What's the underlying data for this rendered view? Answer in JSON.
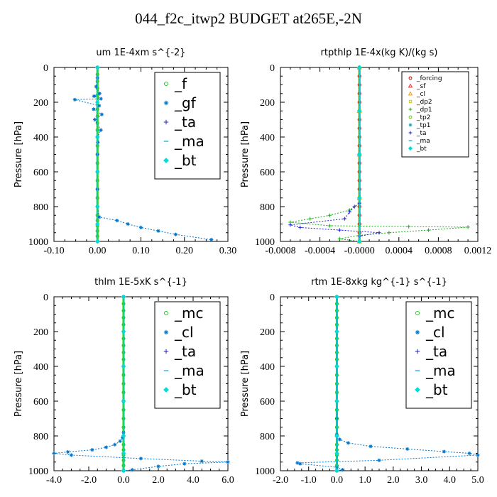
{
  "figure": {
    "title": "044_f2c_itwp2  BUDGET at265E,-2N"
  },
  "chart_data": [
    {
      "type": "line",
      "title": "um   1E-4xm s^{-2}",
      "ylabel": "Pressure [hPa]",
      "xlim": [
        -0.1,
        0.3
      ],
      "ylim": [
        1000,
        0
      ],
      "xticks": [
        "-0.10",
        "0.00",
        "0.10",
        "0.20",
        "0.30"
      ],
      "xtick_values": [
        -0.1,
        0.0,
        0.1,
        0.2,
        0.3
      ],
      "yticks": [
        "0",
        "200",
        "400",
        "600",
        "800",
        "1000"
      ],
      "ytick_values": [
        0,
        200,
        400,
        600,
        800,
        1000
      ],
      "legend_size": "large",
      "series": [
        {
          "name": "_f",
          "color": "#22cc22",
          "marker": "circle",
          "x": [
            0.0,
            0.0,
            0.0,
            0.0,
            0.0,
            0.0,
            0.0,
            0.0,
            0.0,
            0.0,
            0.0,
            0.0,
            0.0,
            0.0,
            0.0,
            0.0,
            0.0,
            0.0,
            0.0,
            0.0,
            0.0,
            0.0,
            0.0,
            0.0,
            0.0
          ],
          "y": [
            0,
            40,
            80,
            120,
            160,
            200,
            240,
            280,
            320,
            360,
            400,
            450,
            500,
            550,
            600,
            650,
            700,
            750,
            800,
            850,
            880,
            910,
            940,
            970,
            1000
          ]
        },
        {
          "name": "_gf",
          "color": "#0077cc",
          "marker": "star",
          "x": [
            0.0,
            0.0,
            -0.003,
            0.005,
            -0.008,
            0.008,
            -0.052,
            0.004,
            -0.009,
            0.01,
            -0.006,
            0.008,
            0.0,
            0.001,
            0.0,
            0.0,
            0.0,
            0.0,
            0.004,
            0.045,
            0.07,
            0.1,
            0.14,
            0.18,
            0.262
          ],
          "y": [
            0,
            60,
            110,
            150,
            165,
            180,
            185,
            220,
            240,
            270,
            300,
            360,
            400,
            430,
            500,
            600,
            700,
            800,
            860,
            880,
            900,
            920,
            940,
            960,
            990
          ]
        },
        {
          "name": "_ta",
          "color": "#2222cc",
          "marker": "plus",
          "x": [
            0.0,
            0.0,
            0.0,
            0.0,
            0.0,
            0.0,
            0.0
          ],
          "y": [
            0,
            200,
            400,
            600,
            800,
            900,
            1000
          ]
        },
        {
          "name": "_ma",
          "color": "#00aadd",
          "marker": "dash",
          "x": [
            0.0,
            0.0,
            0.0,
            0.0,
            0.0,
            0.0,
            0.0
          ],
          "y": [
            0,
            200,
            400,
            600,
            800,
            900,
            1000
          ]
        },
        {
          "name": "_bt",
          "color": "#00dddd",
          "marker": "diamond",
          "x": [
            0.0,
            0.0,
            0.0,
            0.0,
            0.0,
            0.0,
            0.0
          ],
          "y": [
            0,
            200,
            400,
            600,
            800,
            900,
            1000
          ]
        }
      ]
    },
    {
      "type": "line",
      "title": "rtpthlp   1E-4x(kg K)/(kg s)",
      "ylabel": "Pressure [hPa]",
      "xlim": [
        -0.0008,
        0.0012
      ],
      "ylim": [
        1000,
        0
      ],
      "xticks": [
        "-0.0008",
        "-0.0004",
        "-0.0000",
        "0.0004",
        "0.0008",
        "0.0012"
      ],
      "xtick_values": [
        -0.0008,
        -0.0004,
        0.0,
        0.0004,
        0.0008,
        0.0012
      ],
      "yticks": [
        "0",
        "200",
        "400",
        "600",
        "800",
        "1000"
      ],
      "ytick_values": [
        0,
        200,
        400,
        600,
        800,
        1000
      ],
      "legend_size": "small",
      "series": [
        {
          "name": "_forcing",
          "color": "#cc0000",
          "marker": "circle",
          "x": [
            0.0,
            0.0,
            0.0,
            0.0,
            0.0,
            0.0,
            0.0,
            0.0,
            0.0,
            0.0,
            0.0,
            0.0,
            0.0,
            0.0,
            0.0,
            0.0,
            0.0,
            0.0,
            0.0,
            0.0,
            0.0
          ],
          "y": [
            0,
            50,
            100,
            150,
            200,
            250,
            300,
            350,
            400,
            450,
            500,
            550,
            600,
            650,
            700,
            750,
            800,
            850,
            900,
            950,
            1000
          ]
        },
        {
          "name": "_sf",
          "color": "#ff2222",
          "marker": "triangle",
          "x": [
            0.0,
            0.0,
            0.0,
            0.0,
            0.0
          ],
          "y": [
            0,
            250,
            500,
            750,
            1000
          ]
        },
        {
          "name": "_cl",
          "color": "#ff9900",
          "marker": "triangle",
          "x": [
            0.0,
            0.0,
            0.0,
            0.0,
            0.0
          ],
          "y": [
            0,
            250,
            500,
            750,
            1000
          ]
        },
        {
          "name": "_dp2",
          "color": "#cccc00",
          "marker": "square",
          "x": [
            0.0,
            0.0,
            0.0,
            0.0,
            0.0
          ],
          "y": [
            0,
            250,
            500,
            750,
            1000
          ]
        },
        {
          "name": "_dp1",
          "color": "#22aa22",
          "marker": "plus",
          "x": [
            0.0,
            0.0,
            0.0,
            -0.0001,
            -0.0003,
            -0.0005,
            -0.0007,
            -0.0003,
            0.0005,
            0.0011,
            0.0007,
            0.0003,
            0.0,
            -0.0002,
            0.0
          ],
          "y": [
            0,
            400,
            780,
            820,
            850,
            870,
            890,
            910,
            915,
            918,
            935,
            950,
            965,
            985,
            1000
          ]
        },
        {
          "name": "_tp2",
          "color": "#66cc00",
          "marker": "circle",
          "x": [
            0.0,
            0.0,
            0.0,
            0.0,
            0.0
          ],
          "y": [
            0,
            250,
            500,
            750,
            1000
          ]
        },
        {
          "name": "_tp1",
          "color": "#22aaaa",
          "marker": "star",
          "x": [
            0.0,
            0.0,
            0.0,
            0.0,
            0.0
          ],
          "y": [
            0,
            250,
            500,
            750,
            1000
          ]
        },
        {
          "name": "_ta",
          "color": "#2222cc",
          "marker": "plus",
          "x": [
            0.0,
            0.0,
            -5e-05,
            -0.0001,
            -0.00015,
            -0.0007,
            -0.0006,
            -0.0002,
            0.0002,
            0.0,
            0.0
          ],
          "y": [
            0,
            780,
            800,
            830,
            870,
            905,
            920,
            935,
            950,
            970,
            1000
          ]
        },
        {
          "name": "_ma",
          "color": "#00aadd",
          "marker": "dash",
          "x": [
            0.0,
            0.0,
            0.0,
            0.0,
            0.0
          ],
          "y": [
            0,
            250,
            500,
            750,
            1000
          ]
        },
        {
          "name": "_bt",
          "color": "#00dddd",
          "marker": "diamond",
          "x": [
            0.0,
            0.0,
            0.0,
            0.0,
            0.0
          ],
          "y": [
            0,
            250,
            500,
            750,
            1000
          ]
        }
      ]
    },
    {
      "type": "line",
      "title": "thlm   1E-5xK s^{-1}",
      "ylabel": "Pressure [hPa]",
      "xlim": [
        -4.0,
        6.0
      ],
      "ylim": [
        1000,
        0
      ],
      "xticks": [
        "-4.0",
        "-2.0",
        "0.0",
        "2.0",
        "4.0",
        "6.0"
      ],
      "xtick_values": [
        -4.0,
        -2.0,
        0.0,
        2.0,
        4.0,
        6.0
      ],
      "yticks": [
        "0",
        "200",
        "400",
        "600",
        "800",
        "1000"
      ],
      "ytick_values": [
        0,
        200,
        400,
        600,
        800,
        1000
      ],
      "legend_size": "large",
      "series": [
        {
          "name": "_mc",
          "color": "#22cc22",
          "marker": "circle",
          "x": [
            0.0,
            0.0,
            0.0,
            0.0,
            0.0,
            0.0,
            0.0,
            0.0,
            0.0,
            0.0,
            0.0,
            0.0,
            0.0,
            0.0,
            0.0,
            0.0,
            0.0,
            0.0,
            0.0,
            0.0,
            0.0,
            0.0,
            0.0,
            0.0,
            0.0
          ],
          "y": [
            0,
            40,
            80,
            120,
            160,
            200,
            240,
            280,
            320,
            360,
            400,
            450,
            500,
            550,
            600,
            650,
            700,
            750,
            800,
            850,
            880,
            910,
            940,
            970,
            1000
          ]
        },
        {
          "name": "_cl",
          "color": "#0077cc",
          "marker": "star",
          "x": [
            0.0,
            0.0,
            0.0,
            -0.05,
            -0.2,
            -0.5,
            -1.0,
            -1.8,
            -3.2,
            -4.0,
            -3.0,
            1.0,
            4.5,
            6.0,
            3.5,
            2.0,
            0.5,
            0.0
          ],
          "y": [
            0,
            600,
            780,
            810,
            830,
            850,
            865,
            880,
            892,
            900,
            910,
            930,
            945,
            950,
            960,
            975,
            995,
            1000
          ]
        },
        {
          "name": "_ta",
          "color": "#2222cc",
          "marker": "plus",
          "x": [
            0.0,
            0.0,
            0.0,
            0.0,
            0.0,
            0.0,
            0.0
          ],
          "y": [
            0,
            200,
            400,
            600,
            800,
            900,
            1000
          ]
        },
        {
          "name": "_ma",
          "color": "#00aadd",
          "marker": "dash",
          "x": [
            0.0,
            0.0,
            0.0,
            0.0,
            0.0,
            0.0,
            0.0
          ],
          "y": [
            0,
            200,
            400,
            600,
            800,
            900,
            1000
          ]
        },
        {
          "name": "_bt",
          "color": "#00dddd",
          "marker": "diamond",
          "x": [
            0.0,
            0.0,
            0.0,
            0.0,
            0.0,
            0.0,
            0.0
          ],
          "y": [
            0,
            200,
            400,
            600,
            800,
            900,
            1000
          ]
        }
      ]
    },
    {
      "type": "line",
      "title": "rtm   1E-8xkg kg^{-1} s^{-1}",
      "ylabel": "Pressure [hPa]",
      "xlim": [
        -2.0,
        5.0
      ],
      "ylim": [
        1000,
        0
      ],
      "xticks": [
        "-2.0",
        "-1.0",
        "0.0",
        "1.0",
        "2.0",
        "3.0",
        "4.0",
        "5.0"
      ],
      "xtick_values": [
        -2.0,
        -1.0,
        0.0,
        1.0,
        2.0,
        3.0,
        4.0,
        5.0
      ],
      "yticks": [
        "0",
        "200",
        "400",
        "600",
        "800",
        "1000"
      ],
      "ytick_values": [
        0,
        200,
        400,
        600,
        800,
        1000
      ],
      "legend_size": "large",
      "series": [
        {
          "name": "_mc",
          "color": "#22cc22",
          "marker": "circle",
          "x": [
            0.0,
            0.0,
            0.0,
            0.0,
            0.0,
            0.0,
            0.0,
            0.0,
            0.0,
            0.0,
            0.0,
            0.0,
            0.0,
            0.0,
            0.0,
            0.0,
            0.0,
            0.0,
            0.0,
            0.0,
            0.0,
            0.0,
            0.0,
            0.0,
            0.0
          ],
          "y": [
            0,
            40,
            80,
            120,
            160,
            200,
            240,
            280,
            320,
            360,
            400,
            450,
            500,
            550,
            600,
            650,
            700,
            750,
            800,
            850,
            880,
            910,
            940,
            970,
            1000
          ]
        },
        {
          "name": "_cl",
          "color": "#0077cc",
          "marker": "star",
          "x": [
            0.0,
            0.0,
            0.0,
            0.1,
            0.4,
            1.2,
            2.5,
            3.8,
            4.7,
            5.0,
            1.5,
            -1.4,
            -1.3,
            0.0,
            0.2,
            0.0
          ],
          "y": [
            0,
            700,
            790,
            820,
            840,
            860,
            875,
            890,
            900,
            910,
            940,
            955,
            960,
            980,
            995,
            1000
          ]
        },
        {
          "name": "_ta",
          "color": "#2222cc",
          "marker": "plus",
          "x": [
            0.0,
            0.0,
            0.0,
            0.0,
            0.0,
            0.0,
            0.0
          ],
          "y": [
            0,
            200,
            400,
            600,
            800,
            900,
            1000
          ]
        },
        {
          "name": "_ma",
          "color": "#00aadd",
          "marker": "dash",
          "x": [
            0.0,
            0.0,
            0.0,
            0.0,
            0.0,
            0.0,
            0.0
          ],
          "y": [
            0,
            200,
            400,
            600,
            800,
            900,
            1000
          ]
        },
        {
          "name": "_bt",
          "color": "#00dddd",
          "marker": "diamond",
          "x": [
            0.0,
            0.0,
            0.0,
            0.0,
            0.0,
            0.0,
            0.0
          ],
          "y": [
            0,
            200,
            400,
            600,
            800,
            900,
            1000
          ]
        }
      ]
    }
  ]
}
